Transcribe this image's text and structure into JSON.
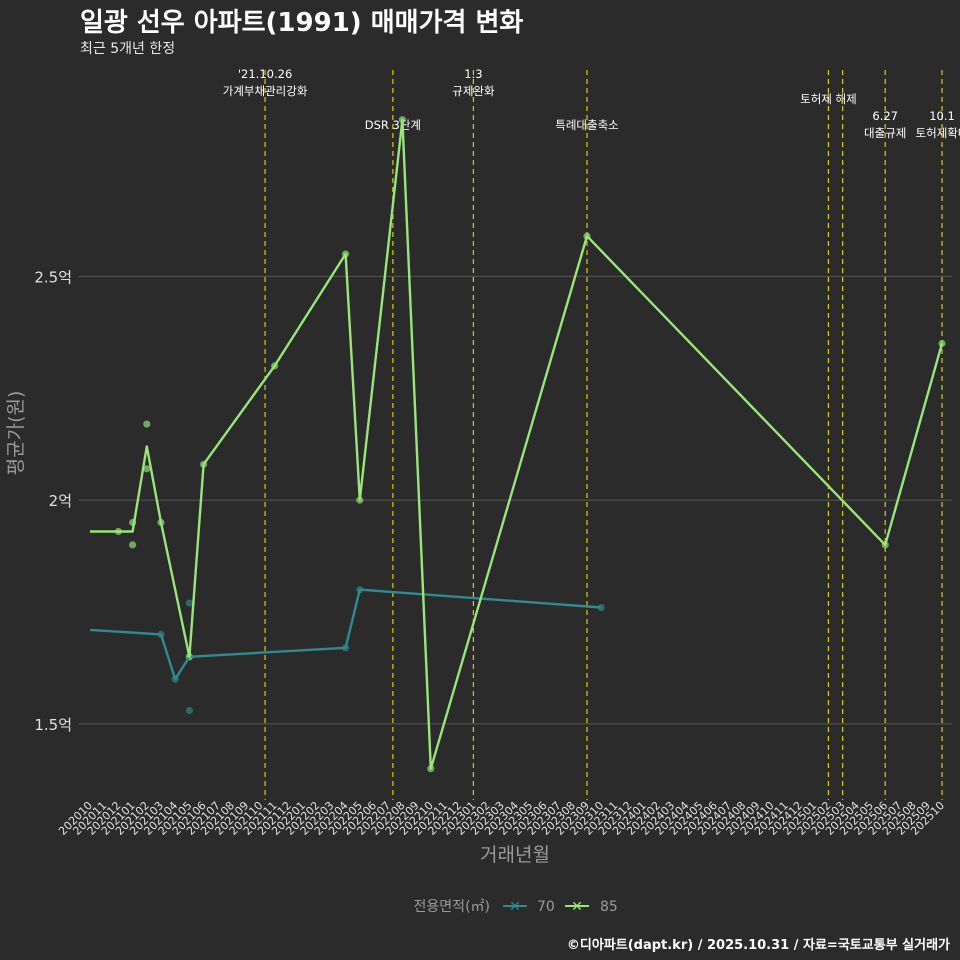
{
  "title": "일광 선우 아파트(1991) 매매가격 변화",
  "subtitle": "최근 5개년 한정",
  "caption": "©디아파트(dapt.kr) / 2025.10.31 / 자료=국토교통부 실거래가",
  "colors": {
    "background": "#2b2b2b",
    "grid": "#555555",
    "event_line": "#d4d000",
    "series_70": "#2e8b8f",
    "series_85": "#98e67a",
    "text": "#e0e0e0",
    "axis_title": "#9a9a9a"
  },
  "chart_data": {
    "type": "line",
    "title": "일광 선우 아파트(1991) 매매가격 변화",
    "subtitle": "최근 5개년 한정",
    "xlabel": "거래년월",
    "ylabel": "평균가(원)",
    "ylim": [
      1.33,
      2.97
    ],
    "y_ticks": [
      {
        "value": 1.5,
        "label": "1.5억"
      },
      {
        "value": 2.0,
        "label": "2억"
      },
      {
        "value": 2.5,
        "label": "2.5억"
      }
    ],
    "x_start": "2020-10",
    "x_end": "2025-10",
    "x_tick_labels": [
      "202010",
      "202011",
      "202012",
      "202101",
      "202102",
      "202103",
      "202104",
      "202105",
      "202106",
      "202107",
      "202108",
      "202109",
      "202110",
      "202111",
      "202112",
      "202201",
      "202202",
      "202203",
      "202204",
      "202205",
      "202206",
      "202207",
      "202208",
      "202209",
      "202210",
      "202211",
      "202212",
      "202301",
      "202302",
      "202303",
      "202304",
      "202305",
      "202306",
      "202307",
      "202308",
      "202309",
      "202310",
      "202311",
      "202312",
      "202401",
      "202402",
      "202403",
      "202404",
      "202405",
      "202406",
      "202407",
      "202408",
      "202409",
      "202410",
      "202411",
      "202412",
      "202501",
      "202502",
      "202503",
      "202504",
      "202505",
      "202506",
      "202507",
      "202508",
      "202509",
      "202510"
    ],
    "legend": {
      "title": "전용면적(㎡)",
      "position": "bottom",
      "entries": [
        "70",
        "85"
      ]
    },
    "events": [
      {
        "x": 12.33,
        "lines": [
          "'21.10.26",
          "가계부채관리강화"
        ],
        "row": 0
      },
      {
        "x": 21.33,
        "lines": [
          "DSR 3단계"
        ],
        "row": 2
      },
      {
        "x": 27.0,
        "lines": [
          "1.3",
          "규제완화"
        ],
        "row": 0
      },
      {
        "x": 35.0,
        "lines": [
          "특례대출축소"
        ],
        "row": 2
      },
      {
        "x": 52.0,
        "lines": [
          "토허제 해제"
        ],
        "row": 1
      },
      {
        "x": 53.0,
        "lines": [],
        "row": 1
      },
      {
        "x": 56.0,
        "lines": [
          "6.27",
          "대출규제"
        ],
        "row": 3
      },
      {
        "x": 60.0,
        "lines": [
          "10.1",
          "토허제확대"
        ],
        "row": 3
      }
    ],
    "series": [
      {
        "name": "70",
        "line": [
          [
            0,
            1.71
          ],
          [
            5,
            1.7
          ],
          [
            6,
            1.6
          ],
          [
            7,
            1.65
          ],
          [
            18,
            1.67
          ],
          [
            19,
            1.8
          ],
          [
            36,
            1.76
          ]
        ],
        "points": [
          [
            5,
            1.7
          ],
          [
            6,
            1.6
          ],
          [
            7,
            1.53
          ],
          [
            7,
            1.65
          ],
          [
            7,
            1.77
          ],
          [
            18,
            1.67
          ],
          [
            19,
            1.8
          ],
          [
            36,
            1.76
          ]
        ]
      },
      {
        "name": "85",
        "line": [
          [
            0,
            1.93
          ],
          [
            2,
            1.93
          ],
          [
            3,
            1.93
          ],
          [
            4,
            2.12
          ],
          [
            5,
            1.95
          ],
          [
            7,
            1.65
          ],
          [
            8,
            2.08
          ],
          [
            13,
            2.3
          ],
          [
            18,
            2.55
          ],
          [
            19,
            2.0
          ],
          [
            22,
            2.85
          ],
          [
            24,
            1.4
          ],
          [
            35,
            2.59
          ],
          [
            56,
            1.9
          ],
          [
            60,
            2.35
          ]
        ],
        "points": [
          [
            2,
            1.93
          ],
          [
            3,
            1.9
          ],
          [
            3,
            1.95
          ],
          [
            4,
            2.17
          ],
          [
            4,
            2.07
          ],
          [
            5,
            1.95
          ],
          [
            7,
            1.65
          ],
          [
            8,
            2.08
          ],
          [
            13,
            2.3
          ],
          [
            18,
            2.55
          ],
          [
            19,
            2.0
          ],
          [
            22,
            2.85
          ],
          [
            24,
            1.4
          ],
          [
            35,
            2.59
          ],
          [
            56,
            1.9
          ],
          [
            60,
            2.35
          ]
        ]
      }
    ]
  }
}
